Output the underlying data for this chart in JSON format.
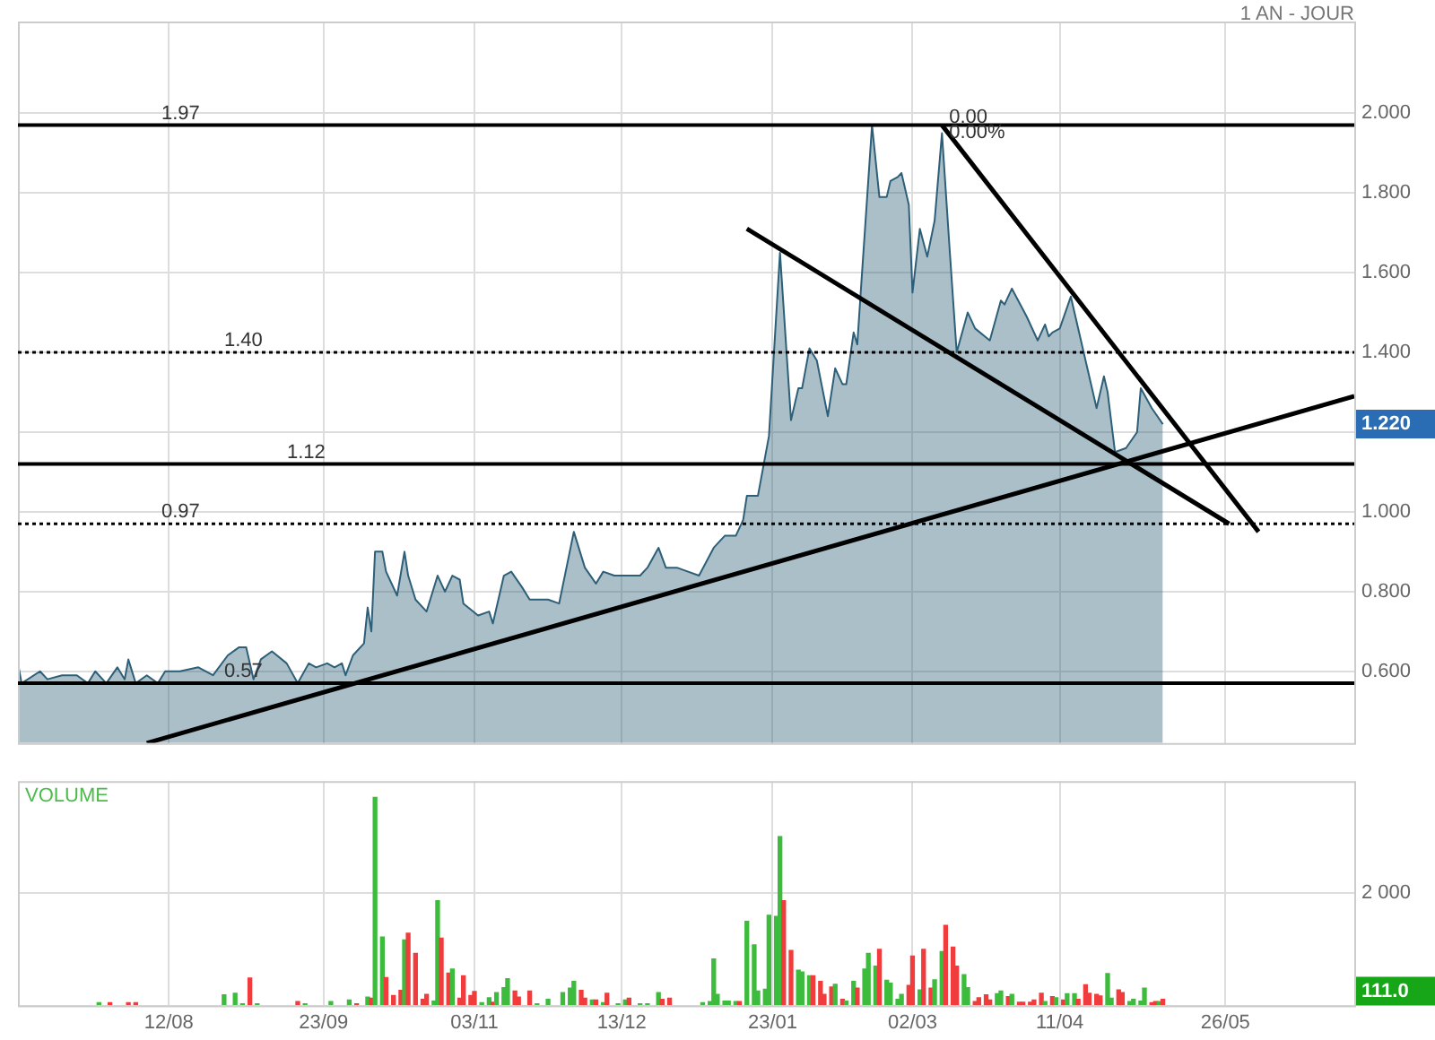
{
  "chart_data": [
    {
      "type": "area",
      "subtitle": "1 AN - JOUR",
      "grid": true,
      "tick_labels": "y",
      "marker": "none",
      "xlim": [
        "2012-07-02",
        "2013-06-30"
      ],
      "xticks": [
        "2012-08-12",
        "2012-09-23",
        "2012-11-03",
        "2012-12-13",
        "2013-01-23",
        "2013-03-02",
        "2013-04-11",
        "2013-05-26"
      ],
      "ylim": [
        0.42,
        2.23
      ],
      "yticks": [
        {
          "value": 0.6,
          "label": "0.600"
        },
        {
          "value": 0.8,
          "label": "0.800"
        },
        {
          "value": 1.0,
          "label": "1.000"
        },
        {
          "value": 1.2,
          "label": null
        },
        {
          "value": 1.4,
          "label": "1.400"
        },
        {
          "value": 1.6,
          "label": "1.600"
        },
        {
          "value": 1.8,
          "label": "1.800"
        },
        {
          "value": 2.0,
          "label": "2.000"
        }
      ],
      "series": [
        {
          "type": "area",
          "color": "#2d5f78",
          "x": [
            "2012-07-02",
            "2012-07-03",
            "2012-07-08",
            "2012-07-10",
            "2012-07-14",
            "2012-07-18",
            "2012-07-21",
            "2012-07-23",
            "2012-07-26",
            "2012-07-29",
            "2012-07-31",
            "2012-08-01",
            "2012-08-03",
            "2012-08-06",
            "2012-08-09",
            "2012-08-11",
            "2012-08-15",
            "2012-08-20",
            "2012-08-24",
            "2012-08-28",
            "2012-08-31",
            "2012-09-02",
            "2012-09-04",
            "2012-09-06",
            "2012-09-09",
            "2012-09-13",
            "2012-09-16",
            "2012-09-19",
            "2012-09-21",
            "2012-09-24",
            "2012-09-26",
            "2012-09-28",
            "2012-09-29",
            "2012-10-01",
            "2012-10-04",
            "2012-10-05",
            "2012-10-06",
            "2012-10-07",
            "2012-10-09",
            "2012-10-10",
            "2012-10-13",
            "2012-10-15",
            "2012-10-16",
            "2012-10-18",
            "2012-10-21",
            "2012-10-24",
            "2012-10-26",
            "2012-10-28",
            "2012-10-30",
            "2012-10-31",
            "2012-11-04",
            "2012-11-07",
            "2012-11-08",
            "2012-11-11",
            "2012-11-13",
            "2012-11-16",
            "2012-11-18",
            "2012-11-23",
            "2012-11-26",
            "2012-11-30",
            "2012-12-03",
            "2012-12-06",
            "2012-12-08",
            "2012-12-11",
            "2012-12-15",
            "2012-12-18",
            "2012-12-20",
            "2012-12-23",
            "2012-12-25",
            "2012-12-28",
            "2013-01-03",
            "2013-01-07",
            "2013-01-10",
            "2013-01-13",
            "2013-01-15",
            "2013-01-16",
            "2013-01-19",
            "2013-01-22",
            "2013-01-25",
            "2013-01-28",
            "2013-01-30",
            "2013-01-31",
            "2013-02-02",
            "2013-02-04",
            "2013-02-07",
            "2013-02-09",
            "2013-02-11",
            "2013-02-12",
            "2013-02-14",
            "2013-02-15",
            "2013-02-16",
            "2013-02-19",
            "2013-02-21",
            "2013-02-23",
            "2013-02-24",
            "2013-02-26",
            "2013-02-27",
            "2013-03-01",
            "2013-03-02",
            "2013-03-04",
            "2013-03-06",
            "2013-03-08",
            "2013-03-10",
            "2013-03-12",
            "2013-03-14",
            "2013-03-17",
            "2013-03-19",
            "2013-03-23",
            "2013-03-26",
            "2013-03-27",
            "2013-03-29",
            "2013-04-02",
            "2013-04-05",
            "2013-04-07",
            "2013-04-08",
            "2013-04-09",
            "2013-04-11",
            "2013-04-14",
            "2013-04-18",
            "2013-04-21",
            "2013-04-23",
            "2013-04-24",
            "2013-04-26",
            "2013-04-29",
            "2013-05-02",
            "2013-05-03",
            "2013-05-06",
            "2013-05-09"
          ],
          "values": [
            0.62,
            0.57,
            0.6,
            0.58,
            0.59,
            0.59,
            0.57,
            0.6,
            0.57,
            0.61,
            0.58,
            0.63,
            0.57,
            0.59,
            0.57,
            0.6,
            0.6,
            0.61,
            0.59,
            0.64,
            0.66,
            0.66,
            0.58,
            0.63,
            0.65,
            0.62,
            0.57,
            0.62,
            0.61,
            0.62,
            0.61,
            0.62,
            0.59,
            0.64,
            0.67,
            0.76,
            0.7,
            0.9,
            0.9,
            0.85,
            0.79,
            0.9,
            0.84,
            0.78,
            0.75,
            0.84,
            0.8,
            0.84,
            0.83,
            0.77,
            0.74,
            0.75,
            0.72,
            0.84,
            0.85,
            0.81,
            0.78,
            0.78,
            0.77,
            0.95,
            0.86,
            0.82,
            0.85,
            0.84,
            0.84,
            0.84,
            0.86,
            0.91,
            0.86,
            0.86,
            0.84,
            0.91,
            0.94,
            0.94,
            0.98,
            1.04,
            1.04,
            1.19,
            1.65,
            1.23,
            1.31,
            1.31,
            1.41,
            1.38,
            1.24,
            1.36,
            1.32,
            1.32,
            1.45,
            1.42,
            1.56,
            1.97,
            1.79,
            1.79,
            1.83,
            1.84,
            1.85,
            1.77,
            1.55,
            1.71,
            1.64,
            1.73,
            1.95,
            1.67,
            1.4,
            1.5,
            1.46,
            1.43,
            1.53,
            1.52,
            1.56,
            1.49,
            1.43,
            1.47,
            1.44,
            1.45,
            1.46,
            1.54,
            1.38,
            1.26,
            1.34,
            1.3,
            1.15,
            1.16,
            1.2,
            1.31,
            1.26,
            1.22
          ]
        },
        {
          "type": "line",
          "color": "#000000",
          "x": [
            "2012-08-06",
            "2013-06-30"
          ],
          "values": [
            0.42,
            1.29
          ]
        },
        {
          "type": "line",
          "color": "#000000",
          "x": [
            "2013-01-16",
            "2013-05-27"
          ],
          "values": [
            1.71,
            0.97
          ]
        },
        {
          "type": "line",
          "color": "#000000",
          "x": [
            "2013-03-10",
            "2013-06-04"
          ],
          "values": [
            1.97,
            0.95
          ]
        }
      ],
      "ref_lines": [
        {
          "axis": "y",
          "value": 1.97,
          "label": "1.97",
          "color": "#000000",
          "line_style": "solid"
        },
        {
          "axis": "y",
          "value": 1.4,
          "label": "1.40",
          "color": "#000000",
          "line_style": "dotted"
        },
        {
          "axis": "y",
          "value": 1.12,
          "label": "1.12",
          "color": "#000000",
          "line_style": "solid"
        },
        {
          "axis": "y",
          "value": 0.97,
          "label": "0.97",
          "color": "#000000",
          "line_style": "dotted"
        },
        {
          "axis": "y",
          "value": 0.57,
          "label": "0.57",
          "color": "#000000",
          "line_style": "solid"
        }
      ],
      "annotations": [
        {
          "text": "0.00",
          "x": "2013-03-10",
          "y": 1.97
        },
        {
          "text": "0.00%",
          "x": "2013-03-10",
          "y": 1.93
        },
        "1.220"
      ]
    },
    {
      "type": "bar",
      "ylabel": "VOLUME",
      "grid": true,
      "xlim": [
        "2012-07-02",
        "2013-06-30"
      ],
      "xticks": [
        {
          "value": "2012-08-12",
          "label": "12/08"
        },
        {
          "value": "2012-09-23",
          "label": "23/09"
        },
        {
          "value": "2012-11-03",
          "label": "03/11"
        },
        {
          "value": "2012-12-13",
          "label": "13/12"
        },
        {
          "value": "2013-01-23",
          "label": "23/01"
        },
        {
          "value": "2013-03-02",
          "label": "02/03"
        },
        {
          "value": "2013-04-11",
          "label": "11/04"
        },
        {
          "value": "2013-05-26",
          "label": "26/05"
        }
      ],
      "ylim": [
        0,
        4000
      ],
      "yticks": [
        {
          "value": 0,
          "label": null
        },
        {
          "value": 2000,
          "label": "2 000"
        }
      ],
      "x": [
        "2012-07-24",
        "2012-07-27",
        "2012-08-01",
        "2012-08-03",
        "2012-08-27",
        "2012-08-30",
        "2012-09-01",
        "2012-09-03",
        "2012-09-05",
        "2012-09-16",
        "2012-09-18",
        "2012-09-25",
        "2012-09-30",
        "2012-10-02",
        "2012-10-05",
        "2012-10-06",
        "2012-10-07",
        "2012-10-09",
        "2012-10-10",
        "2012-10-12",
        "2012-10-14",
        "2012-10-15",
        "2012-10-16",
        "2012-10-18",
        "2012-10-20",
        "2012-10-21",
        "2012-10-23",
        "2012-10-24",
        "2012-10-25",
        "2012-10-27",
        "2012-10-28",
        "2012-10-30",
        "2012-10-31",
        "2012-11-02",
        "2012-11-03",
        "2012-11-05",
        "2012-11-07",
        "2012-11-08",
        "2012-11-09",
        "2012-11-11",
        "2012-11-12",
        "2012-11-14",
        "2012-11-15",
        "2012-11-18",
        "2012-11-20",
        "2012-11-23",
        "2012-11-27",
        "2012-11-29",
        "2012-11-30",
        "2012-12-02",
        "2012-12-03",
        "2012-12-05",
        "2012-12-06",
        "2012-12-08",
        "2012-12-09",
        "2012-12-12",
        "2012-12-14",
        "2012-12-15",
        "2012-12-18",
        "2012-12-20",
        "2012-12-23",
        "2012-12-24",
        "2012-12-26",
        "2013-01-04",
        "2013-01-06",
        "2013-01-07",
        "2013-01-08",
        "2013-01-10",
        "2013-01-11",
        "2013-01-13",
        "2013-01-14",
        "2013-01-16",
        "2013-01-18",
        "2013-01-19",
        "2013-01-21",
        "2013-01-22",
        "2013-01-24",
        "2013-01-25",
        "2013-01-26",
        "2013-01-28",
        "2013-01-30",
        "2013-01-31",
        "2013-02-02",
        "2013-02-03",
        "2013-02-05",
        "2013-02-06",
        "2013-02-08",
        "2013-02-09",
        "2013-02-11",
        "2013-02-12",
        "2013-02-14",
        "2013-02-15",
        "2013-02-17",
        "2013-02-18",
        "2013-02-20",
        "2013-02-21",
        "2013-02-23",
        "2013-02-24",
        "2013-02-26",
        "2013-02-27",
        "2013-03-01",
        "2013-03-02",
        "2013-03-04",
        "2013-03-05",
        "2013-03-07",
        "2013-03-08",
        "2013-03-10",
        "2013-03-11",
        "2013-03-13",
        "2013-03-14",
        "2013-03-16",
        "2013-03-17",
        "2013-03-19",
        "2013-03-20",
        "2013-03-22",
        "2013-03-23",
        "2013-03-25",
        "2013-03-26",
        "2013-03-28",
        "2013-03-29",
        "2013-03-31",
        "2013-04-01",
        "2013-04-03",
        "2013-04-04",
        "2013-04-06",
        "2013-04-07",
        "2013-04-09",
        "2013-04-10",
        "2013-04-12",
        "2013-04-13",
        "2013-04-15",
        "2013-04-16",
        "2013-04-18",
        "2013-04-19",
        "2013-04-21",
        "2013-04-22",
        "2013-04-24",
        "2013-04-25",
        "2013-04-27",
        "2013-04-28",
        "2013-04-30",
        "2013-05-01",
        "2013-05-03",
        "2013-05-04",
        "2013-05-06",
        "2013-05-07",
        "2013-05-08",
        "2013-05-09"
      ],
      "values": [
        50,
        50,
        50,
        50,
        190,
        220,
        30,
        490,
        30,
        70,
        30,
        70,
        100,
        30,
        150,
        130,
        3710,
        1220,
        500,
        180,
        270,
        1170,
        1290,
        930,
        110,
        200,
        80,
        1870,
        1200,
        580,
        650,
        130,
        530,
        180,
        250,
        50,
        140,
        60,
        230,
        320,
        480,
        260,
        150,
        260,
        30,
        110,
        230,
        310,
        430,
        270,
        130,
        100,
        100,
        50,
        220,
        30,
        100,
        130,
        30,
        30,
        230,
        110,
        130,
        50,
        70,
        830,
        200,
        80,
        80,
        70,
        70,
        1500,
        1080,
        260,
        290,
        1610,
        1590,
        3010,
        1870,
        980,
        630,
        600,
        530,
        530,
        430,
        200,
        330,
        380,
        110,
        80,
        430,
        310,
        650,
        930,
        700,
        1000,
        450,
        400,
        110,
        200,
        360,
        880,
        280,
        1000,
        310,
        460,
        960,
        1430,
        1040,
        700,
        550,
        320,
        70,
        140,
        190,
        100,
        210,
        260,
        160,
        200,
        60,
        60,
        60,
        100,
        220,
        70,
        160,
        140,
        100,
        210,
        210,
        110,
        370,
        220,
        200,
        170,
        570,
        130,
        280,
        230,
        70,
        110,
        80,
        310,
        50,
        70,
        70,
        111
      ],
      "colors": [
        "#3dbb3d",
        "#f03c3c",
        "#f03c3c",
        "#f03c3c",
        "#3dbb3d",
        "#3dbb3d",
        "#3dbb3d",
        "#f03c3c",
        "#3dbb3d",
        "#f03c3c",
        "#3dbb3d",
        "#3dbb3d",
        "#3dbb3d",
        "#f03c3c",
        "#3dbb3d",
        "#f03c3c",
        "#3dbb3d",
        "#3dbb3d",
        "#f03c3c",
        "#f03c3c",
        "#f03c3c",
        "#3dbb3d",
        "#f03c3c",
        "#f03c3c",
        "#f03c3c",
        "#f03c3c",
        "#3dbb3d",
        "#3dbb3d",
        "#f03c3c",
        "#f03c3c",
        "#3dbb3d",
        "#f03c3c",
        "#f03c3c",
        "#f03c3c",
        "#f03c3c",
        "#3dbb3d",
        "#3dbb3d",
        "#f03c3c",
        "#3dbb3d",
        "#3dbb3d",
        "#3dbb3d",
        "#f03c3c",
        "#f03c3c",
        "#f03c3c",
        "#3dbb3d",
        "#3dbb3d",
        "#3dbb3d",
        "#3dbb3d",
        "#3dbb3d",
        "#f03c3c",
        "#f03c3c",
        "#3dbb3d",
        "#f03c3c",
        "#3dbb3d",
        "#f03c3c",
        "#3dbb3d",
        "#3dbb3d",
        "#f03c3c",
        "#3dbb3d",
        "#3dbb3d",
        "#3dbb3d",
        "#f03c3c",
        "#f03c3c",
        "#3dbb3d",
        "#3dbb3d",
        "#3dbb3d",
        "#3dbb3d",
        "#3dbb3d",
        "#3dbb3d",
        "#3dbb3d",
        "#f03c3c",
        "#3dbb3d",
        "#3dbb3d",
        "#3dbb3d",
        "#3dbb3d",
        "#3dbb3d",
        "#3dbb3d",
        "#3dbb3d",
        "#f03c3c",
        "#f03c3c",
        "#3dbb3d",
        "#3dbb3d",
        "#3dbb3d",
        "#f03c3c",
        "#f03c3c",
        "#f03c3c",
        "#f03c3c",
        "#3dbb3d",
        "#f03c3c",
        "#3dbb3d",
        "#3dbb3d",
        "#f03c3c",
        "#3dbb3d",
        "#3dbb3d",
        "#3dbb3d",
        "#f03c3c",
        "#3dbb3d",
        "#3dbb3d",
        "#3dbb3d",
        "#3dbb3d",
        "#f03c3c",
        "#f03c3c",
        "#3dbb3d",
        "#f03c3c",
        "#f03c3c",
        "#3dbb3d",
        "#3dbb3d",
        "#f03c3c",
        "#f03c3c",
        "#f03c3c",
        "#3dbb3d",
        "#3dbb3d",
        "#f03c3c",
        "#f03c3c",
        "#f03c3c",
        "#f03c3c",
        "#3dbb3d",
        "#3dbb3d",
        "#f03c3c",
        "#3dbb3d",
        "#f03c3c",
        "#f03c3c",
        "#f03c3c",
        "#f03c3c",
        "#f03c3c",
        "#3dbb3d",
        "#f03c3c",
        "#3dbb3d",
        "#f03c3c",
        "#3dbb3d",
        "#3dbb3d",
        "#f03c3c",
        "#f03c3c",
        "#f03c3c",
        "#f03c3c",
        "#f03c3c",
        "#3dbb3d",
        "#3dbb3d",
        "#f03c3c",
        "#f03c3c",
        "#3dbb3d",
        "#3dbb3d",
        "#3dbb3d",
        "#3dbb3d",
        "#f03c3c",
        "#f03c3c",
        "#3dbb3d",
        "#f03c3c"
      ],
      "annotations": [
        "111.0"
      ]
    }
  ]
}
